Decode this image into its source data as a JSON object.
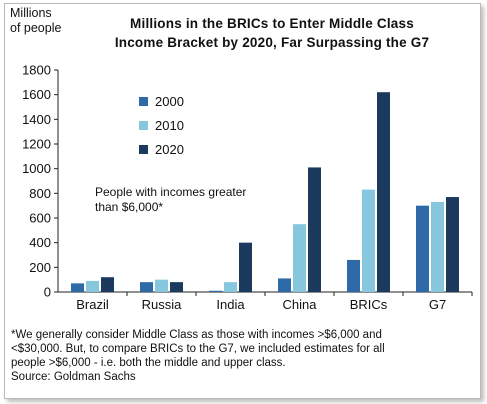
{
  "chart_data": {
    "type": "bar",
    "title_lines": [
      "Millions in the BRICs to Enter Middle Class",
      "Income Bracket by 2020, Far Surpassing the G7"
    ],
    "ylabel_lines": [
      "Millions",
      "of people"
    ],
    "xlabel": "",
    "categories": [
      "Brazil",
      "Russia",
      "India",
      "China",
      "BRICs",
      "G7"
    ],
    "series": [
      {
        "name": "2000",
        "color": "#2e6aa8",
        "values": [
          70,
          80,
          10,
          110,
          260,
          700
        ]
      },
      {
        "name": "2010",
        "color": "#86c7dd",
        "values": [
          90,
          100,
          80,
          550,
          830,
          730
        ]
      },
      {
        "name": "2020",
        "color": "#1b3a5e",
        "values": [
          120,
          80,
          400,
          1010,
          1620,
          770
        ]
      }
    ],
    "ylim": [
      0,
      1800
    ],
    "yticks": [
      "0",
      "200",
      "400",
      "600",
      "800",
      "1000",
      "1200",
      "1400",
      "1600",
      "1800"
    ],
    "legend_position": "top-left",
    "grid": false,
    "annotation_lines": [
      "People with incomes greater",
      "than $6,000*"
    ]
  },
  "footnote_lines": [
    "*We generally consider Middle Class as those with incomes >$6,000 and",
    "<$30,000. But, to compare BRICs to the G7, we included estimates for all",
    "people >$6,000 - i.e. both the middle and upper class."
  ],
  "source": "Source: Goldman Sachs"
}
